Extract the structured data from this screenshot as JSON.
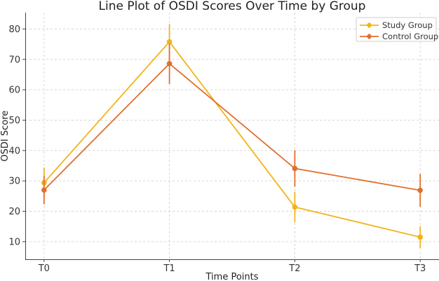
{
  "chart_data": {
    "type": "line",
    "title": "Line Plot of OSDI Scores Over Time by Group",
    "xlabel": "Time Points",
    "ylabel": "OSDI Score",
    "categories": [
      "T0",
      "T1",
      "T2",
      "T3"
    ],
    "xlim": [
      -0.15,
      3.15
    ],
    "ylim": [
      4.2,
      85.4
    ],
    "yticks": [
      10,
      20,
      30,
      40,
      50,
      60,
      70,
      80
    ],
    "grid": true,
    "legend_position": "top-right",
    "series": [
      {
        "name": "Study Group",
        "color": "#f2b418",
        "values": [
          29.4,
          75.8,
          21.4,
          11.5
        ],
        "errors": [
          5.0,
          5.8,
          5.0,
          3.6
        ]
      },
      {
        "name": "Control Group",
        "color": "#e0702e",
        "values": [
          27.0,
          68.6,
          34.1,
          26.9
        ],
        "errors": [
          4.7,
          6.7,
          6.0,
          5.4
        ]
      }
    ]
  }
}
